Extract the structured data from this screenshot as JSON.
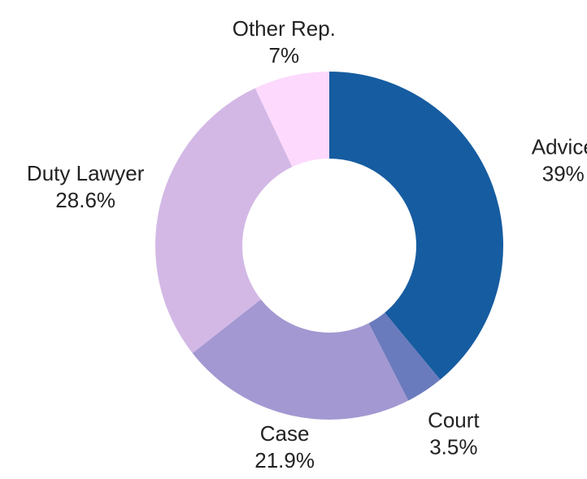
{
  "chart_data": {
    "type": "donut",
    "categories": [
      "Advice",
      "Court",
      "Case",
      "Duty Lawyer",
      "Other Rep."
    ],
    "values": [
      39,
      3.5,
      21.9,
      28.6,
      7
    ],
    "value_labels": [
      "39%",
      "3.5%",
      "21.9%",
      "28.6%",
      "7%"
    ],
    "colors": [
      "#165ca0",
      "#6a7bbd",
      "#a398d1",
      "#d3b8e6",
      "#fdd9fd"
    ]
  }
}
